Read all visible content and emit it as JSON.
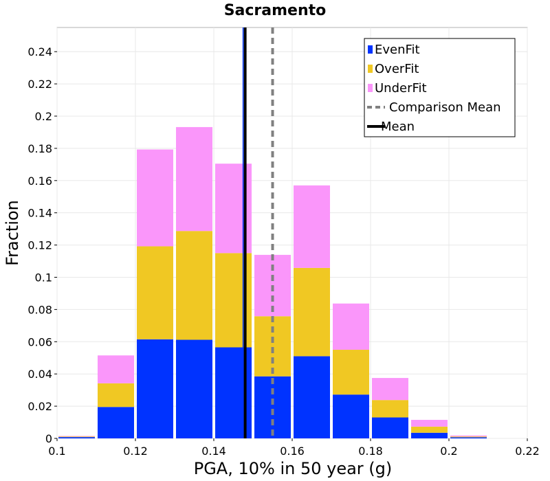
{
  "chart_data": {
    "type": "bar",
    "stacked": true,
    "title": "Sacramento",
    "xlabel": "PGA, 10% in 50 year (g)",
    "ylabel": "Fraction",
    "xlim": [
      0.1,
      0.22
    ],
    "ylim": [
      0,
      0.255
    ],
    "x_ticks": [
      "0.1",
      "0.12",
      "0.14",
      "0.16",
      "0.18",
      "0.2",
      "0.22"
    ],
    "y_ticks": [
      "0",
      "0.02",
      "0.04",
      "0.06",
      "0.08",
      "0.1",
      "0.12",
      "0.14",
      "0.16",
      "0.18",
      "0.2",
      "0.22",
      "0.24"
    ],
    "bin_width": 0.01,
    "bin_starts": [
      0.1,
      0.11,
      0.12,
      0.13,
      0.14,
      0.15,
      0.16,
      0.17,
      0.18,
      0.19,
      0.2
    ],
    "grid": true,
    "series": [
      {
        "name": "EvenFit",
        "color": "#0033ff",
        "values": [
          0.0008,
          0.0195,
          0.0615,
          0.0612,
          0.0565,
          0.0385,
          0.051,
          0.0272,
          0.013,
          0.0035,
          0.0007
        ]
      },
      {
        "name": "OverFit",
        "color": "#f0c823",
        "values": [
          0.0004,
          0.0147,
          0.0577,
          0.0675,
          0.0585,
          0.0373,
          0.0548,
          0.0278,
          0.0108,
          0.0038,
          0.0005
        ]
      },
      {
        "name": "UnderFit",
        "color": "#fa96fa",
        "values": [
          0.0003,
          0.0173,
          0.0601,
          0.0645,
          0.0555,
          0.0381,
          0.0512,
          0.0287,
          0.0137,
          0.0042,
          0.0006
        ]
      }
    ],
    "lines": [
      {
        "name": "Comparison Mean",
        "x": 0.155,
        "color": "#808080",
        "style": "dashed"
      },
      {
        "name": "Mean",
        "x": 0.148,
        "color": "#000000",
        "style": "solid"
      }
    ],
    "legend_position": "top-right",
    "legend": [
      {
        "label": "EvenFit",
        "kind": "box",
        "color": "#0033ff"
      },
      {
        "label": "OverFit",
        "kind": "box",
        "color": "#f0c823"
      },
      {
        "label": "UnderFit",
        "kind": "box",
        "color": "#fa96fa"
      },
      {
        "label": "Comparison Mean",
        "kind": "dashed",
        "color": "#808080"
      },
      {
        "label": "Mean",
        "kind": "solid",
        "color": "#000000"
      }
    ]
  }
}
